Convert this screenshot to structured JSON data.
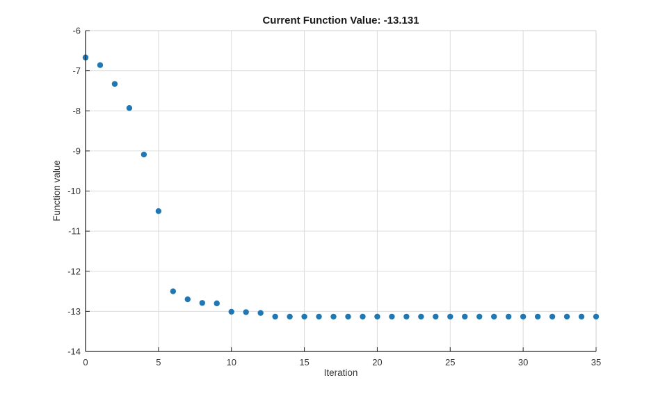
{
  "chart_data": {
    "type": "scatter",
    "title": "Current Function Value: -13.131",
    "xlabel": "Iteration",
    "ylabel": "Function value",
    "current_function_value": -13.131,
    "xlim": [
      0,
      35
    ],
    "ylim": [
      -14,
      -6
    ],
    "xticks": [
      0,
      5,
      10,
      15,
      20,
      25,
      30,
      35
    ],
    "yticks": [
      -14,
      -13,
      -12,
      -11,
      -10,
      -9,
      -8,
      -7,
      -6
    ],
    "grid": true,
    "legend_position": "none",
    "marker_color": "#1f77b4",
    "grid_color": "#dcdcdc",
    "boundary_color": "#cfcfcf",
    "axis_color": "#262626",
    "x": [
      0,
      1,
      2,
      3,
      4,
      5,
      6,
      7,
      8,
      9,
      10,
      11,
      12,
      13,
      14,
      15,
      16,
      17,
      18,
      19,
      20,
      21,
      22,
      23,
      24,
      25,
      26,
      27,
      28,
      29,
      30,
      31,
      32,
      33,
      34,
      35
    ],
    "y": [
      -6.67,
      -6.86,
      -7.33,
      -7.93,
      -9.09,
      -10.5,
      -12.5,
      -12.7,
      -12.79,
      -12.8,
      -13.01,
      -13.02,
      -13.04,
      -13.131,
      -13.131,
      -13.131,
      -13.131,
      -13.131,
      -13.131,
      -13.131,
      -13.131,
      -13.131,
      -13.131,
      -13.131,
      -13.131,
      -13.131,
      -13.131,
      -13.131,
      -13.131,
      -13.131,
      -13.131,
      -13.131,
      -13.131,
      -13.131,
      -13.131,
      -13.131
    ]
  }
}
